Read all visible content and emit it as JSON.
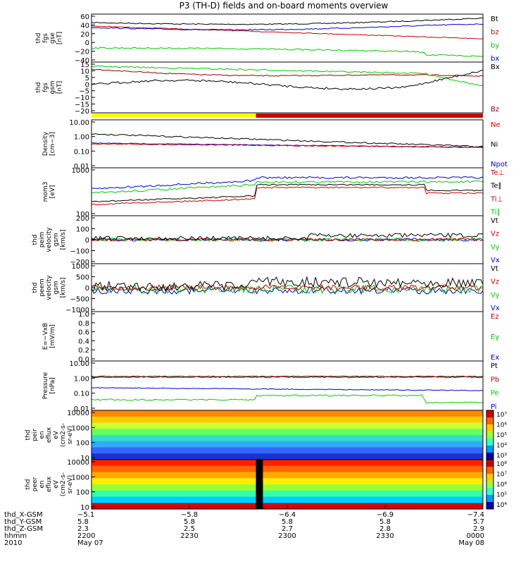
{
  "title": "P3 (TH-D) fields and on-board moments overview",
  "colors": {
    "black": "#000000",
    "red": "#cc0000",
    "green": "#00cc00",
    "blue": "#0000cc",
    "darkred": "#990000",
    "yellow": "#ffff00"
  },
  "chart_data": [
    {
      "type": "line",
      "id": "fgs_gse",
      "ylabel": [
        "thd",
        "fgs",
        "gse",
        "[nT]"
      ],
      "ticks": [
        "60",
        "40",
        "20",
        "0",
        "−20",
        "−40"
      ],
      "legend": [
        {
          "label": "Bt",
          "color": "black"
        },
        {
          "label": "bz",
          "color": "red"
        },
        {
          "label": "by",
          "color": "green"
        },
        {
          "label": "bx",
          "color": "blue"
        }
      ]
    },
    {
      "type": "line",
      "id": "fgs_gsm",
      "ylabel": [
        "thd",
        "fgs",
        "gsm",
        "[nT]"
      ],
      "ticks": [
        "15",
        "10",
        "5",
        "0",
        "−5",
        "−10",
        "−15",
        "−20"
      ],
      "legend": [
        {
          "label": "Bx",
          "color": "black"
        },
        {
          "label": "Bz",
          "color": "darkred"
        }
      ]
    },
    {
      "type": "line",
      "id": "density",
      "ylabel": [
        "Density",
        "[cm−3]"
      ],
      "ticks": [
        "10.00",
        "1.00",
        "0.10",
        "0.01"
      ],
      "legend": [
        {
          "label": "Ne",
          "color": "red"
        },
        {
          "label": "Ni",
          "color": "black"
        },
        {
          "label": "Npot",
          "color": "blue"
        }
      ]
    },
    {
      "type": "line",
      "id": "temp",
      "ylabel": [
        "mom3",
        "[eV]"
      ],
      "ticks": [
        "1000",
        "100"
      ],
      "legend": [
        {
          "label": "Te⊥",
          "color": "red"
        },
        {
          "label": "Te∥",
          "color": "black"
        },
        {
          "label": "Ti⊥",
          "color": "red"
        },
        {
          "label": "Ti∥",
          "color": "green"
        }
      ]
    },
    {
      "type": "line",
      "id": "peim_v",
      "ylabel": [
        "thd",
        "peim",
        "velocity",
        "gsm",
        "[km/s]"
      ],
      "ticks": [
        "200",
        "100",
        "0",
        "−100",
        "−200"
      ],
      "legend": [
        {
          "label": "Vt",
          "color": "black"
        },
        {
          "label": "Vz",
          "color": "red"
        },
        {
          "label": "Vy",
          "color": "green"
        },
        {
          "label": "Vx",
          "color": "blue"
        }
      ]
    },
    {
      "type": "line",
      "id": "peem_v",
      "ylabel": [
        "thd",
        "peem",
        "velocity",
        "gsm",
        "[km/s]"
      ],
      "ticks": [
        "1000",
        "500",
        "0",
        "−500",
        "−1000"
      ],
      "legend": [
        {
          "label": "Vt",
          "color": "black"
        },
        {
          "label": "Vz",
          "color": "red"
        },
        {
          "label": "Vy",
          "color": "green"
        },
        {
          "label": "Vx",
          "color": "blue"
        }
      ]
    },
    {
      "type": "line",
      "id": "exb",
      "ylabel": [
        "E=−VxB",
        "[mV/m]"
      ],
      "ticks": [
        "1.0",
        "0.8",
        "0.6",
        "0.4",
        "0.2",
        "0.0"
      ],
      "legend": [
        {
          "label": "Ez",
          "color": "red"
        },
        {
          "label": "Ey",
          "color": "green"
        },
        {
          "label": "Ex",
          "color": "blue"
        }
      ]
    },
    {
      "type": "line",
      "id": "pressure",
      "ylabel": [
        "Pressure",
        "[nPa]"
      ],
      "ticks": [
        "10.00",
        "1.00",
        "0.10",
        "0.01"
      ],
      "legend": [
        {
          "label": "Pt",
          "color": "black"
        },
        {
          "label": "Pb",
          "color": "red"
        },
        {
          "label": "Pe",
          "color": "green"
        },
        {
          "label": "Pi",
          "color": "blue"
        }
      ]
    },
    {
      "type": "heatmap",
      "id": "peir_en",
      "ylabel": [
        "thd",
        "peir",
        "en",
        "eflux",
        "eV",
        "(cm2-s-",
        "sr-eV)"
      ],
      "ticks": [
        "10000",
        "1000",
        "100",
        "10"
      ],
      "colorbar": [
        "10⁷",
        "10⁶",
        "10⁵",
        "10⁴",
        "10³"
      ]
    },
    {
      "type": "heatmap",
      "id": "peer_en",
      "ylabel": [
        "thd",
        "peer",
        "en",
        "eflux",
        "eV",
        "(cm2-s-",
        "sr-eV)"
      ],
      "ticks": [
        "10000",
        "1000",
        "100",
        "10"
      ],
      "colorbar": [
        "10⁸",
        "10⁷",
        "10⁶",
        "10⁵",
        "10⁴"
      ]
    }
  ],
  "xaxis": {
    "row_labels": [
      "thd_X-GSM",
      "thd_Y-GSM",
      "thd_Z-GSM",
      "hhmm",
      "2010"
    ],
    "columns": [
      {
        "values": [
          "−5.1",
          "5.8",
          "2.3",
          "2200",
          "May 07"
        ]
      },
      {
        "values": [
          "−5.8",
          "5.8",
          "2.5",
          "2230",
          ""
        ]
      },
      {
        "values": [
          "−6.4",
          "5.8",
          "2.7",
          "2300",
          ""
        ]
      },
      {
        "values": [
          "−6.9",
          "5.8",
          "2.8",
          "2330",
          ""
        ]
      },
      {
        "values": [
          "−7.4",
          "5.7",
          "2.9",
          "0000",
          "May 08"
        ]
      }
    ]
  }
}
